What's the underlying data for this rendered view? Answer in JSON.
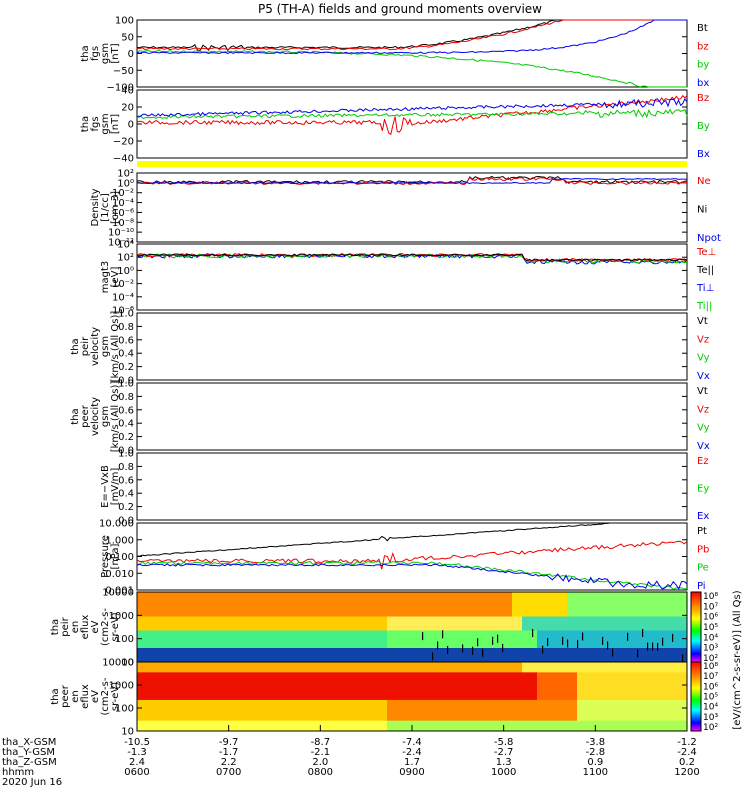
{
  "title": "P5 (TH-A) fields and ground moments overview",
  "colors": {
    "black": "#000000",
    "red": "#ee0000",
    "green": "#00cc00",
    "blue": "#0000ee",
    "yellow": "#ffff00"
  },
  "chart_data": [
    {
      "type": "line",
      "ylabel_lines": [
        "tha",
        "fgs",
        "gsm",
        "[nT]"
      ],
      "yticks": [
        "100",
        "50",
        "0",
        "−50",
        "−100"
      ],
      "ylim": [
        -100,
        100
      ],
      "legend": [
        {
          "name": "Bt",
          "color": "#000000"
        },
        {
          "name": "bz",
          "color": "#ee0000"
        },
        {
          "name": "by",
          "color": "#00cc00"
        },
        {
          "name": "bx",
          "color": "#0000ee"
        }
      ]
    },
    {
      "type": "line",
      "ylabel_lines": [
        "tha",
        "fgs",
        "gsm",
        "[nT]"
      ],
      "yticks": [
        "40",
        "20",
        "0",
        "−20",
        "−40"
      ],
      "ylim": [
        -50,
        40
      ],
      "legend": [
        {
          "name": "Bz",
          "color": "#ee0000"
        },
        {
          "name": "By",
          "color": "#00cc00"
        },
        {
          "name": "Bx",
          "color": "#0000ee"
        }
      ]
    },
    {
      "type": "line",
      "ylabel_lines": [
        "Density",
        "[1/cc]",
        "[cm-3]"
      ],
      "yticks": [
        "10²",
        "10⁰",
        "10⁻²",
        "10⁻⁴",
        "10⁻⁶",
        "10⁻⁸",
        "10⁻¹⁰",
        "10⁻¹²"
      ],
      "legend": [
        {
          "name": "Ne",
          "color": "#ee0000"
        },
        {
          "name": "Ni",
          "color": "#000000"
        },
        {
          "name": "Npot",
          "color": "#0000ee"
        }
      ]
    },
    {
      "type": "line",
      "ylabel_lines": [
        "magt3",
        "[eV]"
      ],
      "yticks": [
        "10⁴",
        "10²",
        "10⁰",
        "10⁻²",
        "10⁻⁴",
        "10⁻⁶"
      ],
      "legend": [
        {
          "name": "Te⊥",
          "color": "#ee0000"
        },
        {
          "name": "Te||",
          "color": "#000000"
        },
        {
          "name": "Ti⊥",
          "color": "#0000ee"
        },
        {
          "name": "Ti||",
          "color": "#00cc00"
        }
      ]
    },
    {
      "type": "line",
      "ylabel_lines": [
        "tha",
        "peir",
        "velocity",
        "gsm",
        "[km/s (All Qs)]"
      ],
      "yticks": [
        "1.0",
        "0.8",
        "0.6",
        "0.4",
        "0.2",
        "0.0"
      ],
      "ylim": [
        0,
        1
      ],
      "legend": [
        {
          "name": "Vt",
          "color": "#000000"
        },
        {
          "name": "Vz",
          "color": "#ee0000"
        },
        {
          "name": "Vy",
          "color": "#00cc00"
        },
        {
          "name": "Vx",
          "color": "#0000ee"
        }
      ]
    },
    {
      "type": "line",
      "ylabel_lines": [
        "tha",
        "peer",
        "velocity",
        "gsm",
        "[km/s (All Qs)]"
      ],
      "yticks": [
        "1.0",
        "0.8",
        "0.6",
        "0.4",
        "0.2",
        "0.0"
      ],
      "ylim": [
        0,
        1
      ],
      "legend": [
        {
          "name": "Vt",
          "color": "#000000"
        },
        {
          "name": "Vz",
          "color": "#ee0000"
        },
        {
          "name": "Vy",
          "color": "#00cc00"
        },
        {
          "name": "Vx",
          "color": "#0000ee"
        }
      ]
    },
    {
      "type": "line",
      "ylabel_lines": [
        "E=−VxB",
        "[mV/m]"
      ],
      "yticks": [
        "1.0",
        "0.8",
        "0.6",
        "0.4",
        "0.2",
        "0.0"
      ],
      "ylim": [
        0,
        1
      ],
      "legend": [
        {
          "name": "Ez",
          "color": "#ee0000"
        },
        {
          "name": "Ey",
          "color": "#00cc00"
        },
        {
          "name": "Ex",
          "color": "#0000ee"
        }
      ]
    },
    {
      "type": "line",
      "ylabel_lines": [
        "Pressure",
        "[nPa]"
      ],
      "yticks": [
        "10.000",
        "1.000",
        "0.100",
        "0.010",
        "0.001"
      ],
      "legend": [
        {
          "name": "Pt",
          "color": "#000000"
        },
        {
          "name": "Pb",
          "color": "#ee0000"
        },
        {
          "name": "Pe",
          "color": "#00cc00"
        },
        {
          "name": "Pi",
          "color": "#0000ee"
        }
      ]
    },
    {
      "type": "heatmap",
      "ylabel_lines": [
        "tha",
        "peir",
        "en",
        "eflux",
        "eV",
        "(cm2-s-",
        "sr-eV)"
      ],
      "yticks": [
        "10000",
        "1000",
        "100",
        "10"
      ],
      "colorbar_ticks": [
        "10⁸",
        "10⁷",
        "10⁶",
        "10⁵",
        "10⁴",
        "10³",
        "10²"
      ]
    },
    {
      "type": "heatmap",
      "ylabel_lines": [
        "tha",
        "peer",
        "en",
        "eflux",
        "eV",
        "(cm2-s-",
        "sr-eV)"
      ],
      "yticks": [
        "10000",
        "1000",
        "100",
        "10"
      ],
      "colorbar_ticks": [
        "10⁸",
        "10⁷",
        "10⁶",
        "10⁵",
        "10⁴",
        "10³",
        "10²"
      ]
    }
  ],
  "colorbar_label": "[eV/(cm^2-s-sr-eV)] (All Qs)",
  "xaxis": {
    "rows": [
      {
        "label": "tha_X-GSM",
        "values": [
          "-10.5",
          "-9.7",
          "-8.7",
          "-7.4",
          "-5.8",
          "-3.8",
          "-1.2"
        ]
      },
      {
        "label": "tha_Y-GSM",
        "values": [
          "-1.3",
          "-1.7",
          "-2.1",
          "-2.4",
          "-2.7",
          "-2.8",
          "-2.4"
        ]
      },
      {
        "label": "tha_Z-GSM",
        "values": [
          "2.4",
          "2.2",
          "2.0",
          "1.7",
          "1.3",
          "0.9",
          "0.2"
        ]
      },
      {
        "label": "hhmm",
        "values": [
          "0600",
          "0700",
          "0800",
          "0900",
          "1000",
          "1100",
          "1200"
        ]
      }
    ],
    "date": "2020 Jun 16"
  }
}
